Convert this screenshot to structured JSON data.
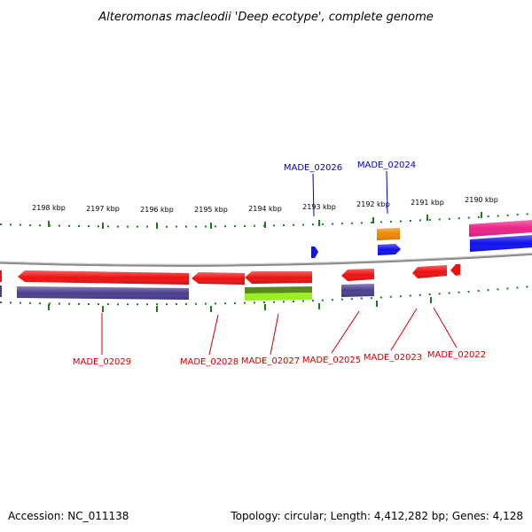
{
  "title": "Alteromonas macleodii 'Deep ecotype', complete genome",
  "footer": {
    "accession": "Accession: NC_011138",
    "summary": "Topology: circular; Length: 4,412,282 bp; Genes: 4,128"
  },
  "colors": {
    "backbone": "#888888",
    "tick": "#1a7a1a",
    "label_red": "#cc0000",
    "label_blue": "#0000cc"
  },
  "axis": {
    "ticks": [
      {
        "label": "2198 kbp"
      },
      {
        "label": "2197 kbp"
      },
      {
        "label": "2196 kbp"
      },
      {
        "label": "2195 kbp"
      },
      {
        "label": "2194 kbp"
      },
      {
        "label": "2193 kbp"
      },
      {
        "label": "2192 kbp"
      },
      {
        "label": "2191 kbp"
      },
      {
        "label": "2190 kbp"
      }
    ]
  },
  "gene_labels": [
    {
      "name": "MADE_02029",
      "color": "#cc0000"
    },
    {
      "name": "MADE_02028",
      "color": "#cc0000"
    },
    {
      "name": "MADE_02027",
      "color": "#cc0000"
    },
    {
      "name": "MADE_02025",
      "color": "#cc0000"
    },
    {
      "name": "MADE_02023",
      "color": "#cc0000"
    },
    {
      "name": "MADE_02022",
      "color": "#cc0000"
    },
    {
      "name": "MADE_02026",
      "color": "#0000cc"
    },
    {
      "name": "MADE_02024",
      "color": "#0000cc"
    }
  ],
  "features": [
    {
      "id": "f-left-red-stub",
      "color": "#ee1111"
    },
    {
      "id": "f-02029",
      "color": "#ee1111"
    },
    {
      "id": "f-02029-cog",
      "color": "#4a3f8f"
    },
    {
      "id": "f-02028",
      "color": "#ee1111"
    },
    {
      "id": "f-02027",
      "color": "#ee1111"
    },
    {
      "id": "f-02027-cog-a",
      "color": "#5a8a1e"
    },
    {
      "id": "f-02027-cog-b",
      "color": "#9aee22"
    },
    {
      "id": "f-02025",
      "color": "#ee1111"
    },
    {
      "id": "f-02025-cog",
      "color": "#4a3f8f"
    },
    {
      "id": "f-02023",
      "color": "#ee1111"
    },
    {
      "id": "f-02022",
      "color": "#ee1111"
    },
    {
      "id": "f-02026",
      "color": "#1111ee"
    },
    {
      "id": "f-02024",
      "color": "#1111ee"
    },
    {
      "id": "f-02024-cog",
      "color": "#ee8800"
    },
    {
      "id": "f-right-pink",
      "color": "#ee2288"
    },
    {
      "id": "f-right-blue",
      "color": "#1111ee"
    },
    {
      "id": "f-left-cog-stub",
      "color": "#4a3f8f"
    }
  ]
}
